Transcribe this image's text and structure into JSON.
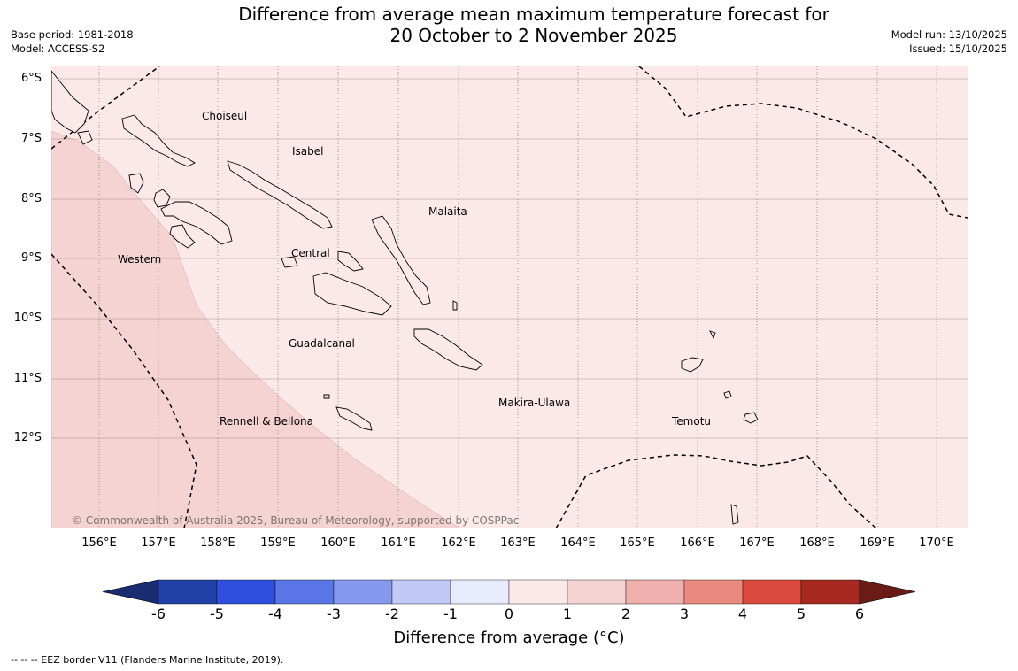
{
  "title": {
    "line1": "Difference from average mean maximum temperature forecast for",
    "line2": "20 October to 2 November 2025"
  },
  "meta_left": {
    "base_period": "Base period: 1981-2018",
    "model": "Model: ACCESS-S2"
  },
  "meta_right": {
    "model_run": "Model run: 13/10/2025",
    "issued": "Issued: 15/10/2025"
  },
  "lat_labels": [
    "6°S",
    "7°S",
    "8°S",
    "9°S",
    "10°S",
    "11°S",
    "12°S"
  ],
  "lon_labels": [
    "156°E",
    "157°E",
    "158°E",
    "159°E",
    "160°E",
    "161°E",
    "162°E",
    "163°E",
    "164°E",
    "165°E",
    "166°E",
    "167°E",
    "168°E",
    "169°E",
    "170°E"
  ],
  "places": [
    {
      "name": "Choiseul"
    },
    {
      "name": "Isabel"
    },
    {
      "name": "Malaita"
    },
    {
      "name": "Western"
    },
    {
      "name": "Central"
    },
    {
      "name": "Guadalcanal"
    },
    {
      "name": "Makira-Ulawa"
    },
    {
      "name": "Rennell & Bellona"
    },
    {
      "name": "Temotu"
    }
  ],
  "copyright": "© Commonwealth of Australia 2025, Bureau of Meteorology, supported by COSPPac",
  "colorbar": {
    "title": "Difference from average (°C)",
    "ticks": [
      "-6",
      "-5",
      "-4",
      "-3",
      "-2",
      "-1",
      "0",
      "1",
      "2",
      "3",
      "4",
      "5",
      "6"
    ],
    "colors": [
      "#2140a8",
      "#2f4fde",
      "#5a76e6",
      "#8698ee",
      "#c2c9f6",
      "#e8ebfc",
      "#fbe9e9",
      "#f5d3d2",
      "#efafad",
      "#e9897f",
      "#dc4a3f",
      "#a82920"
    ],
    "under_color": "#1a2c70",
    "over_color": "#6b1c17"
  },
  "shading": {
    "class_0_1": "#fbe9e9",
    "class_1_2": "#f5d3d2"
  },
  "eez_note": "--  --  -- EEZ border V11 (Flanders Marine Institute, 2019)."
}
